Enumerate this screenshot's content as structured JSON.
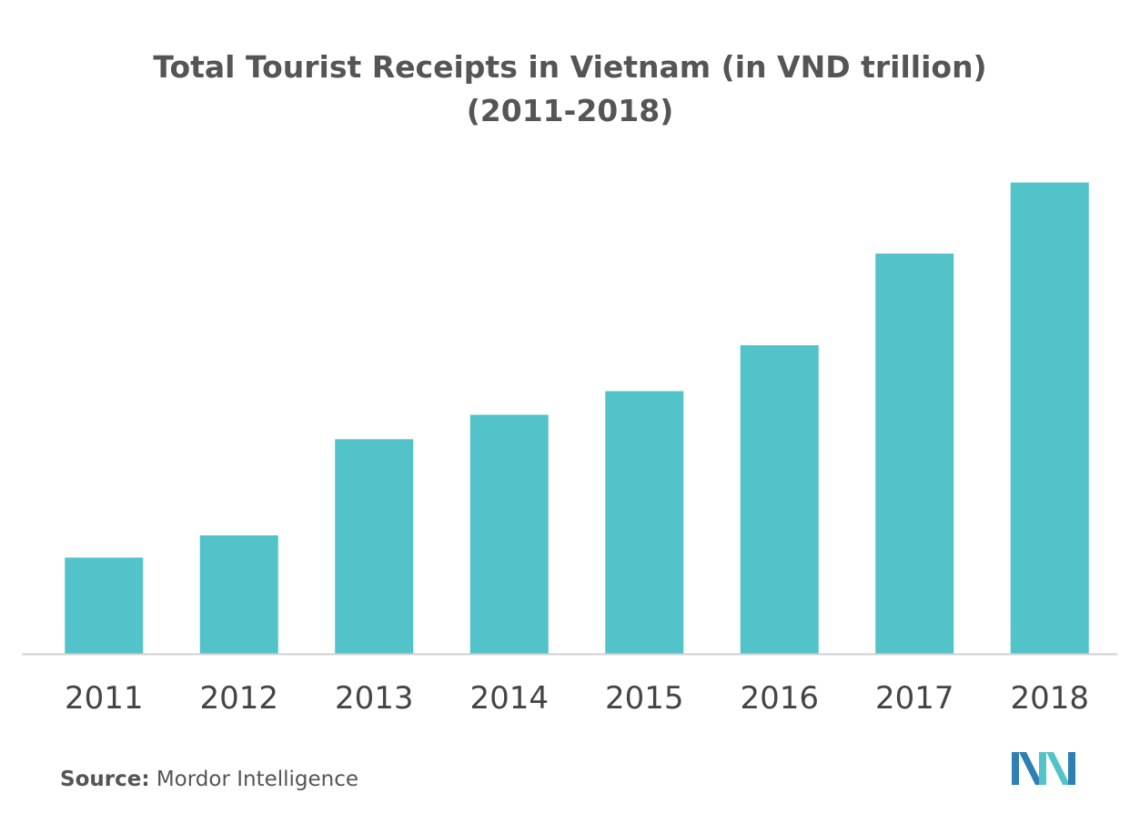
{
  "chart_data": {
    "type": "bar",
    "title": "Total Tourist Receipts in Vietnam (in VND trillion)",
    "subtitle": "(2011-2018)",
    "categories": [
      "2011",
      "2012",
      "2013",
      "2014",
      "2015",
      "2016",
      "2017",
      "2018"
    ],
    "values": [
      130,
      160,
      290,
      323,
      355,
      417,
      541,
      637
    ],
    "xlabel": "",
    "ylabel": "",
    "ylim": [
      0,
      640
    ],
    "grid": false,
    "legend": "none",
    "bar_color": "#52c3c9",
    "axis_color": "#d0d0d0"
  },
  "source": {
    "label": "Source:",
    "text": "Mordor Intelligence"
  },
  "logo": {
    "icon": "mordor-intelligence-logo-icon",
    "colors": [
      "#2f7fb3",
      "#52c3c9"
    ]
  }
}
